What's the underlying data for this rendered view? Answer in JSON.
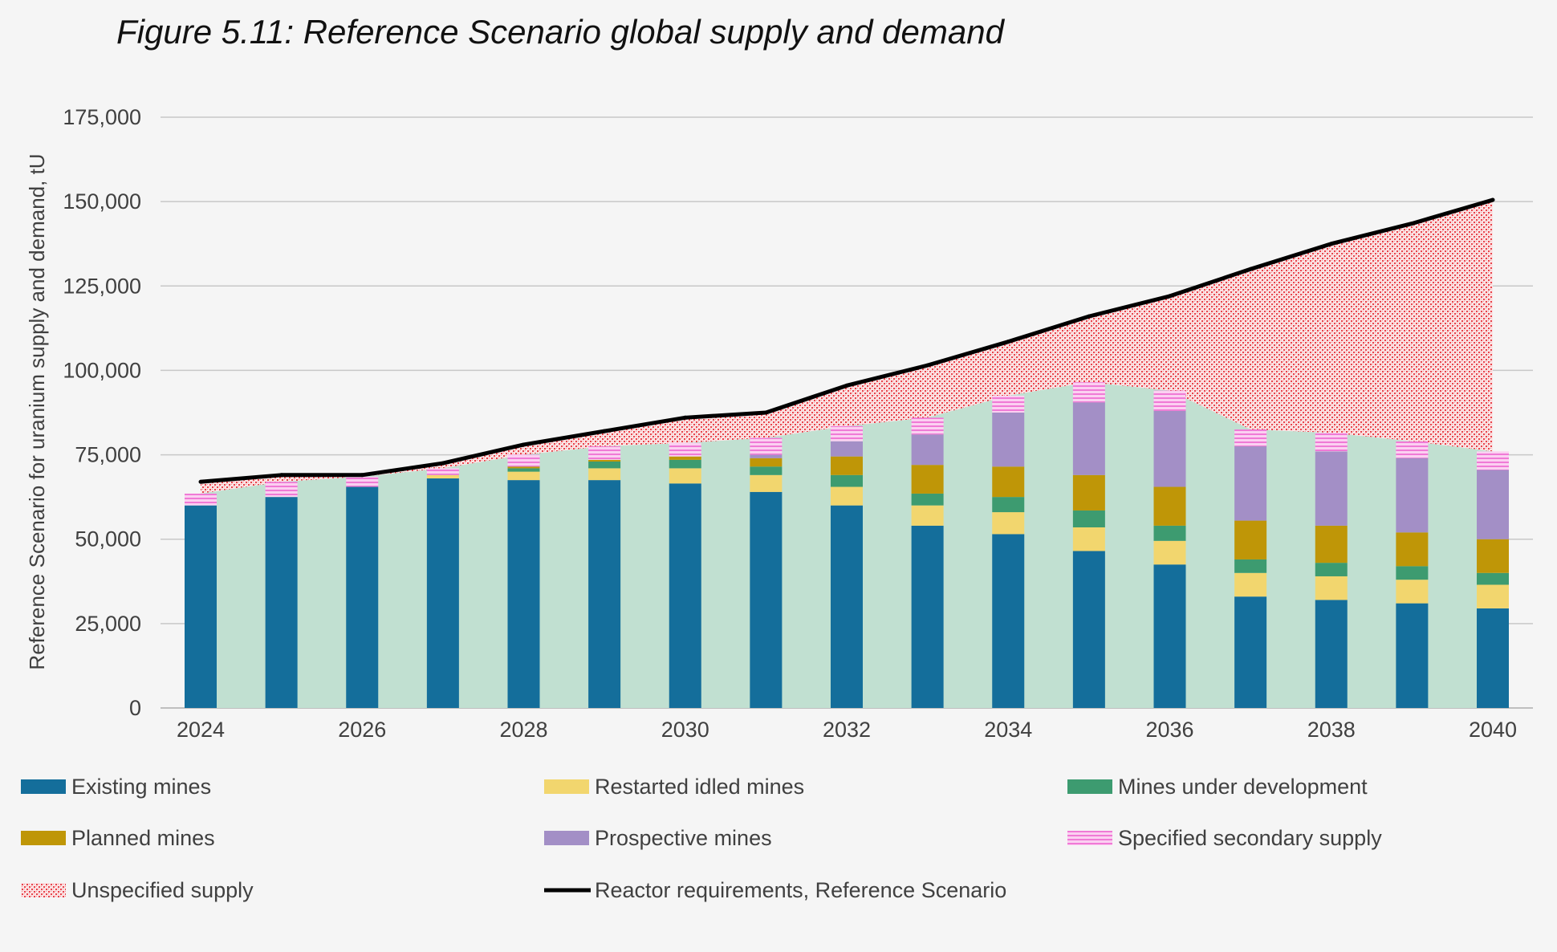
{
  "chart_data": {
    "type": "bar",
    "title": "Figure 5.11: Reference Scenario global supply and demand",
    "ylabel": "Reference Scenario for uranium supply and demand, tU",
    "xlabel": "",
    "ylim": [
      0,
      175000
    ],
    "yticks": [
      "0",
      "25,000",
      "50,000",
      "75,000",
      "100,000",
      "125,000",
      "150,000",
      "175,000"
    ],
    "categories": [
      "2024",
      "2025",
      "2026",
      "2027",
      "2028",
      "2029",
      "2030",
      "2031",
      "2032",
      "2033",
      "2034",
      "2035",
      "2036",
      "2037",
      "2038",
      "2039",
      "2040"
    ],
    "xtick_labels": [
      "2024",
      "2026",
      "2028",
      "2030",
      "2032",
      "2034",
      "2036",
      "2038",
      "2040"
    ],
    "grid": true,
    "legend_position": "bottom",
    "series": [
      {
        "name": "Existing mines",
        "kind": "bar",
        "color": "#146e9b",
        "values": [
          60000,
          62500,
          65500,
          68000,
          67500,
          67500,
          66500,
          64000,
          60000,
          54000,
          51500,
          46500,
          42500,
          33000,
          32000,
          31000,
          29500
        ]
      },
      {
        "name": "Restarted idled mines",
        "kind": "bar",
        "color": "#f2d66e",
        "values": [
          0,
          0,
          0,
          1000,
          2500,
          3500,
          4500,
          5000,
          5500,
          6000,
          6500,
          7000,
          7000,
          7000,
          7000,
          7000,
          7000
        ]
      },
      {
        "name": "Mines under development",
        "kind": "bar",
        "color": "#3d9b70",
        "values": [
          0,
          0,
          0,
          0,
          1000,
          2000,
          2500,
          2500,
          3500,
          3500,
          4500,
          5000,
          4500,
          4000,
          4000,
          4000,
          3500
        ]
      },
      {
        "name": "Planned mines",
        "kind": "bar",
        "color": "#bf9607",
        "values": [
          0,
          0,
          0,
          0,
          500,
          500,
          1000,
          2500,
          5500,
          8500,
          9000,
          10500,
          11500,
          11500,
          11000,
          10000,
          10000
        ]
      },
      {
        "name": "Prospective mines",
        "kind": "bar",
        "color": "#a38fc6",
        "values": [
          0,
          0,
          0,
          0,
          0,
          0,
          0,
          1000,
          4500,
          9000,
          16000,
          21500,
          22500,
          22000,
          22000,
          22000,
          20500
        ]
      },
      {
        "name": "Specified secondary supply",
        "kind": "bar",
        "color": "#f07ad6",
        "values": [
          3500,
          4500,
          3000,
          2000,
          3500,
          4000,
          4000,
          5000,
          4500,
          5000,
          5000,
          6000,
          6000,
          5000,
          5500,
          5000,
          5500
        ]
      },
      {
        "name": "Unspecified supply",
        "kind": "area",
        "color": "#e8434b"
      },
      {
        "name": "Reactor requirements, Reference Scenario",
        "kind": "line",
        "color": "#000000",
        "values": [
          67000,
          69000,
          69000,
          72500,
          78000,
          82000,
          86000,
          87500,
          95500,
          101500,
          108500,
          116000,
          122000,
          130000,
          137500,
          143500,
          150500
        ]
      }
    ]
  }
}
